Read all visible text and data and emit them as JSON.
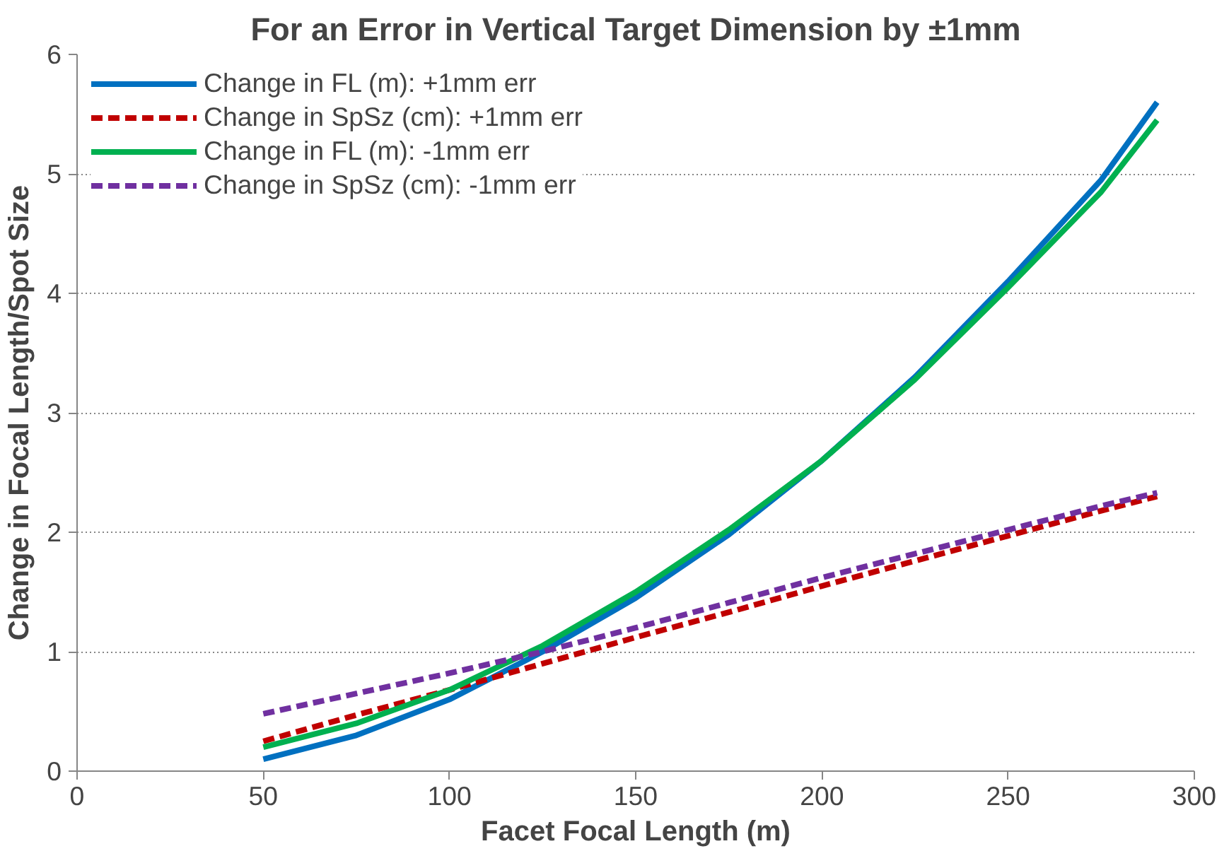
{
  "chart_data": {
    "type": "line",
    "title": "For an Error in Vertical Target Dimension by ±1mm",
    "xlabel": "Facet Focal Length (m)",
    "ylabel": "Change in Focal Length/Spot Size",
    "x": [
      50,
      75,
      100,
      125,
      150,
      175,
      200,
      225,
      250,
      275,
      290
    ],
    "series": [
      {
        "name": "Change in FL (m): +1mm err",
        "color": "#0070c0",
        "line_style": "solid",
        "values": [
          0.1,
          0.3,
          0.6,
          1.0,
          1.45,
          1.98,
          2.6,
          3.3,
          4.1,
          4.95,
          5.6
        ]
      },
      {
        "name": "Change in SpSz (cm): +1mm err",
        "color": "#c00000",
        "line_style": "dashed",
        "values": [
          0.25,
          0.47,
          0.68,
          0.9,
          1.12,
          1.33,
          1.55,
          1.76,
          1.97,
          2.18,
          2.3
        ]
      },
      {
        "name": "Change in FL (m): -1mm err",
        "color": "#00b050",
        "line_style": "solid",
        "values": [
          0.2,
          0.4,
          0.68,
          1.05,
          1.5,
          2.02,
          2.6,
          3.28,
          4.05,
          4.85,
          5.45
        ]
      },
      {
        "name": "Change in SpSz (cm): -1mm err",
        "color": "#7030a0",
        "line_style": "dashed",
        "values": [
          0.48,
          0.65,
          0.82,
          1.0,
          1.2,
          1.41,
          1.62,
          1.82,
          2.02,
          2.22,
          2.33
        ]
      }
    ],
    "xlim": [
      0,
      300
    ],
    "xticks": [
      0,
      50,
      100,
      150,
      200,
      250,
      300
    ],
    "ylim": [
      0,
      6
    ],
    "yticks": [
      0,
      1,
      2,
      3,
      4,
      5,
      6
    ],
    "grid": "y",
    "legend": "top left"
  }
}
